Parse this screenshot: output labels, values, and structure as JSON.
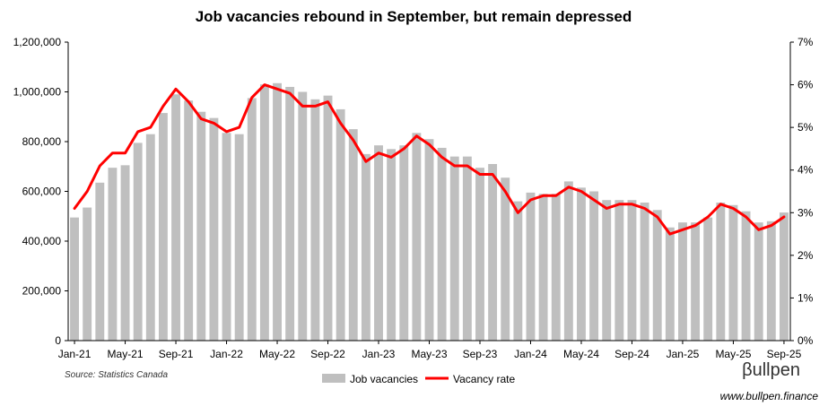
{
  "chart_data": {
    "type": "bar",
    "title": "Job vacancies rebound in September, but remain depressed",
    "xlabel": "",
    "ylabel": "",
    "x_tick_labels": [
      "Jan-21",
      "May-21",
      "Sep-21",
      "Jan-22",
      "May-22",
      "Sep-22",
      "Jan-23",
      "May-23",
      "Sep-23",
      "Jan-24",
      "May-24",
      "Sep-24",
      "Jan-25",
      "May-25",
      "Sep-25"
    ],
    "ylim": [
      0,
      1200000
    ],
    "y_tick_labels": [
      "0",
      "200,000",
      "400,000",
      "600,000",
      "800,000",
      "1,000,000",
      "1,200,000"
    ],
    "y2lim": [
      0,
      7
    ],
    "y2_tick_labels": [
      "0%",
      "1%",
      "2%",
      "3%",
      "4%",
      "5%",
      "6%",
      "7%"
    ],
    "grid": false,
    "legend_position": "bottom",
    "categories": [
      "Jan-21",
      "Feb-21",
      "Mar-21",
      "Apr-21",
      "May-21",
      "Jun-21",
      "Jul-21",
      "Aug-21",
      "Sep-21",
      "Oct-21",
      "Nov-21",
      "Dec-21",
      "Jan-22",
      "Feb-22",
      "Mar-22",
      "Apr-22",
      "May-22",
      "Jun-22",
      "Jul-22",
      "Aug-22",
      "Sep-22",
      "Oct-22",
      "Nov-22",
      "Dec-22",
      "Jan-23",
      "Feb-23",
      "Mar-23",
      "Apr-23",
      "May-23",
      "Jun-23",
      "Jul-23",
      "Aug-23",
      "Sep-23",
      "Oct-23",
      "Nov-23",
      "Dec-23",
      "Jan-24",
      "Feb-24",
      "Mar-24",
      "Apr-24",
      "May-24",
      "Jun-24",
      "Jul-24",
      "Aug-24",
      "Sep-24",
      "Oct-24",
      "Nov-24",
      "Dec-24",
      "Jan-25",
      "Feb-25",
      "Mar-25",
      "Apr-25",
      "May-25",
      "Jun-25",
      "Jul-25",
      "Aug-25",
      "Sep-25"
    ],
    "series": [
      {
        "name": "Job vacancies",
        "type": "bar",
        "axis": "left",
        "color": "#bfbfbf",
        "values": [
          495000,
          535000,
          635000,
          695000,
          705000,
          795000,
          830000,
          915000,
          990000,
          965000,
          920000,
          895000,
          835000,
          830000,
          975000,
          1030000,
          1035000,
          1020000,
          1000000,
          970000,
          985000,
          930000,
          850000,
          750000,
          785000,
          770000,
          785000,
          835000,
          810000,
          775000,
          740000,
          740000,
          695000,
          710000,
          655000,
          560000,
          595000,
          590000,
          590000,
          640000,
          615000,
          600000,
          565000,
          565000,
          565000,
          555000,
          525000,
          455000,
          475000,
          475000,
          495000,
          555000,
          545000,
          520000,
          475000,
          480000,
          515000
        ]
      },
      {
        "name": "Vacancy rate",
        "type": "line",
        "axis": "right",
        "color": "#ff0000",
        "values": [
          3.1,
          3.5,
          4.1,
          4.4,
          4.4,
          4.9,
          5.0,
          5.5,
          5.9,
          5.6,
          5.2,
          5.1,
          4.9,
          5.0,
          5.7,
          6.0,
          5.9,
          5.8,
          5.5,
          5.5,
          5.6,
          5.1,
          4.7,
          4.2,
          4.4,
          4.3,
          4.5,
          4.8,
          4.6,
          4.3,
          4.1,
          4.1,
          3.9,
          3.9,
          3.5,
          3.0,
          3.3,
          3.4,
          3.4,
          3.6,
          3.5,
          3.3,
          3.1,
          3.2,
          3.2,
          3.1,
          2.9,
          2.5,
          2.6,
          2.7,
          2.9,
          3.2,
          3.1,
          2.9,
          2.6,
          2.7,
          2.9
        ]
      }
    ]
  },
  "footer": {
    "source": "Source: Statistics Canada",
    "brand_symbol": "β",
    "brand_name": "ullpen",
    "website": "www.bullpen.finance"
  }
}
